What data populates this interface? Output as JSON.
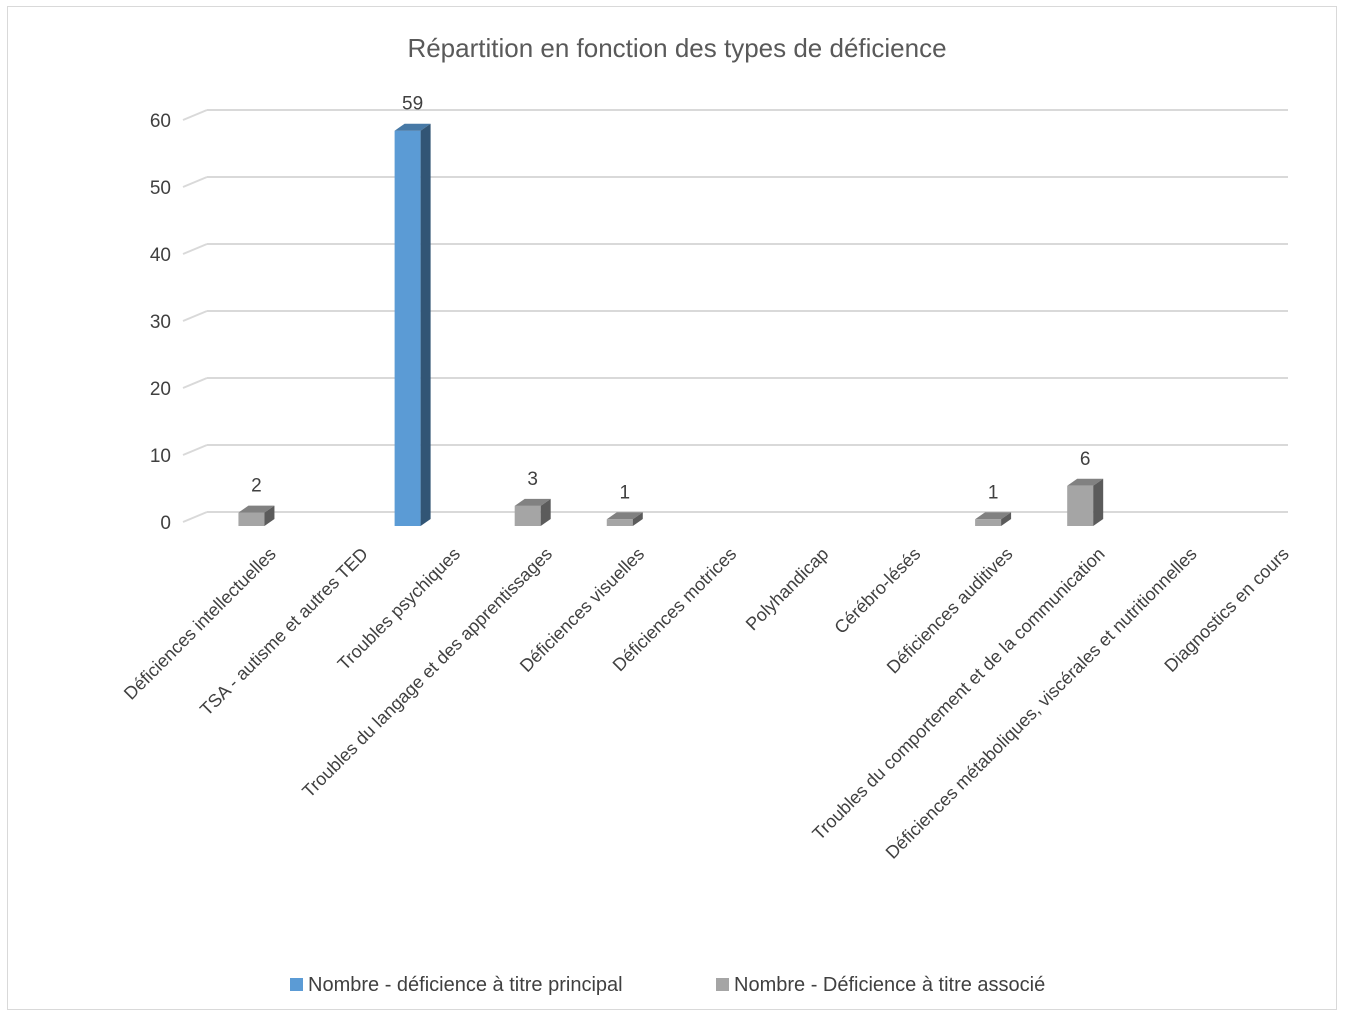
{
  "chart_data": {
    "type": "bar",
    "title": "Répartition en fonction des types de déficience",
    "xlabel": "",
    "ylabel": "",
    "ylim": [
      0,
      60
    ],
    "yticks": [
      0,
      10,
      20,
      30,
      40,
      50,
      60
    ],
    "grid": true,
    "legend_position": "bottom",
    "categories": [
      "Déficiences intellectuelles",
      "TSA - autisme et autres TED",
      "Troubles psychiques",
      "Troubles du langage et des apprentissages",
      "Déficiences visuelles",
      "Déficiences motrices",
      "Polyhandicap",
      "Cérébro-lésés",
      "Déficiences auditives",
      "Troubles du comportement et de la communication",
      "Déficiences métaboliques, viscérales et nutritionnelles",
      "Diagnostics en cours"
    ],
    "series": [
      {
        "name": "Nombre - déficience à titre principal",
        "color": "#5b9bd5",
        "values": [
          null,
          null,
          59,
          null,
          null,
          null,
          null,
          null,
          null,
          null,
          null,
          null
        ]
      },
      {
        "name": "Nombre - Déficience à titre associé",
        "color": "#a5a5a5",
        "values": [
          2,
          null,
          null,
          3,
          1,
          null,
          null,
          null,
          1,
          6,
          null,
          null
        ]
      }
    ]
  }
}
